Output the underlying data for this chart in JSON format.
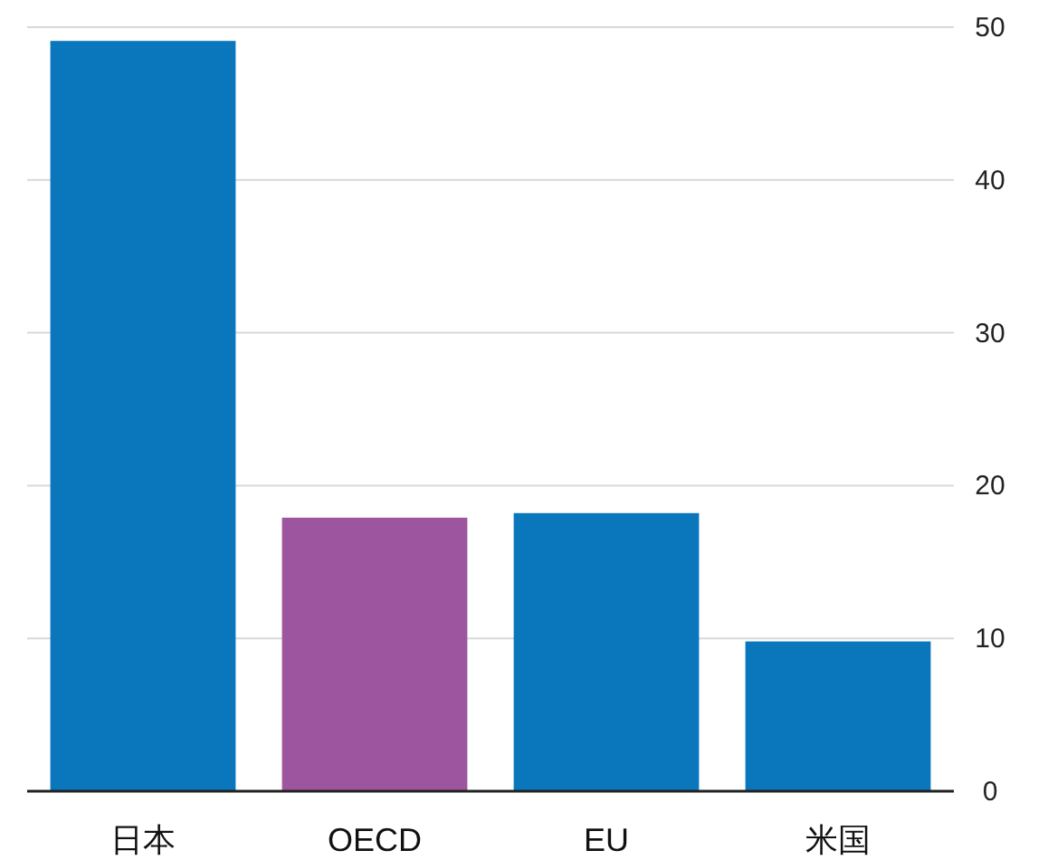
{
  "chart_data": {
    "type": "bar",
    "categories": [
      "日本",
      "OECD",
      "EU",
      "米国"
    ],
    "values": [
      49.1,
      17.9,
      18.2,
      9.8
    ],
    "colors": [
      "#0a77bd",
      "#9e55a0",
      "#0a77bd",
      "#0a77bd"
    ],
    "ylim": [
      0,
      50
    ],
    "yticks": [
      0,
      10,
      20,
      30,
      40,
      50
    ],
    "grid": "y"
  }
}
